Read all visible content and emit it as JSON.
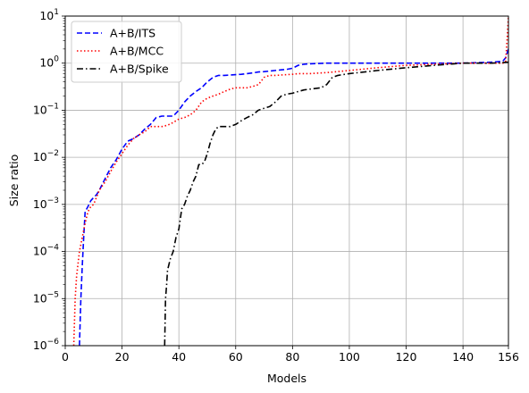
{
  "chart_data": {
    "type": "line",
    "title": "",
    "xlabel": "Models",
    "ylabel": "Size ratio",
    "xlim": [
      0,
      156
    ],
    "ylim": [
      1e-06,
      10
    ],
    "yscale": "log",
    "grid": true,
    "legend_position": "top-left",
    "x_ticks": [
      0,
      20,
      40,
      60,
      80,
      100,
      120,
      140,
      156
    ],
    "x_tick_labels": [
      "0",
      "20",
      "40",
      "60",
      "80",
      "100",
      "120",
      "140",
      "156"
    ],
    "y_ticks": [
      1e-06,
      1e-05,
      0.0001,
      0.001,
      0.01,
      0.1,
      1,
      10
    ],
    "y_tick_labels": [
      {
        "base": "10",
        "exp": "−6"
      },
      {
        "base": "10",
        "exp": "−5"
      },
      {
        "base": "10",
        "exp": "−4"
      },
      {
        "base": "10",
        "exp": "−3"
      },
      {
        "base": "10",
        "exp": "−2"
      },
      {
        "base": "10",
        "exp": "−1"
      },
      {
        "base": "10",
        "exp": "0"
      },
      {
        "base": "10",
        "exp": "1"
      }
    ],
    "series": [
      {
        "name": "A+B/ITS",
        "color": "#0000ff",
        "dash": "dashed",
        "x": [
          5,
          5.5,
          6,
          6.5,
          7,
          8,
          9,
          10,
          11,
          12,
          14,
          16,
          18,
          20,
          22,
          24,
          26,
          28,
          30,
          32,
          34,
          36,
          38,
          40,
          42,
          44,
          46,
          48,
          50,
          52,
          54,
          56,
          58,
          60,
          62,
          64,
          66,
          68,
          70,
          72,
          74,
          76,
          78,
          80,
          82,
          84,
          86,
          88,
          90,
          92,
          100,
          110,
          120,
          130,
          140,
          150,
          154,
          155,
          156
        ],
        "y": [
          1e-06,
          1e-05,
          5e-05,
          0.0002,
          0.0007,
          0.0009,
          0.0012,
          0.0014,
          0.0016,
          0.002,
          0.0035,
          0.006,
          0.009,
          0.015,
          0.022,
          0.025,
          0.03,
          0.04,
          0.05,
          0.07,
          0.075,
          0.075,
          0.075,
          0.1,
          0.15,
          0.2,
          0.25,
          0.3,
          0.4,
          0.5,
          0.55,
          0.55,
          0.56,
          0.57,
          0.58,
          0.6,
          0.62,
          0.65,
          0.66,
          0.68,
          0.7,
          0.72,
          0.74,
          0.78,
          0.9,
          0.95,
          0.97,
          0.98,
          0.99,
          1.0,
          1.0,
          1.0,
          1.0,
          1.0,
          1.0,
          1.05,
          1.1,
          1.3,
          2.0
        ]
      },
      {
        "name": "A+B/MCC",
        "color": "#ff0000",
        "dash": "dotted",
        "x": [
          3,
          3.5,
          4,
          5,
          6,
          7,
          8,
          9,
          10,
          12,
          14,
          16,
          18,
          20,
          22,
          24,
          26,
          28,
          30,
          32,
          34,
          36,
          38,
          40,
          42,
          44,
          46,
          48,
          50,
          52,
          54,
          56,
          58,
          60,
          62,
          64,
          66,
          68,
          70,
          72,
          74,
          76,
          78,
          80,
          82,
          84,
          86,
          88,
          90,
          92,
          100,
          110,
          120,
          130,
          140,
          150,
          154,
          155,
          155.5,
          156
        ],
        "y": [
          1e-06,
          1e-05,
          3e-05,
          0.0001,
          0.0002,
          0.0004,
          0.0007,
          0.0009,
          0.001,
          0.002,
          0.003,
          0.005,
          0.008,
          0.012,
          0.018,
          0.025,
          0.03,
          0.035,
          0.045,
          0.045,
          0.045,
          0.048,
          0.055,
          0.065,
          0.07,
          0.08,
          0.1,
          0.15,
          0.18,
          0.2,
          0.22,
          0.25,
          0.28,
          0.3,
          0.3,
          0.3,
          0.32,
          0.35,
          0.5,
          0.55,
          0.55,
          0.56,
          0.57,
          0.58,
          0.6,
          0.6,
          0.6,
          0.61,
          0.62,
          0.63,
          0.7,
          0.8,
          0.9,
          0.95,
          1.0,
          1.0,
          1.0,
          1.05,
          3.0,
          10
        ]
      },
      {
        "name": "A+B/Spike",
        "color": "#000000",
        "dash": "dashdot",
        "x": [
          35,
          35.3,
          35.7,
          36,
          37,
          38,
          39,
          40,
          41,
          42,
          43,
          44,
          45,
          46,
          47,
          48,
          49,
          50,
          51,
          52,
          53,
          54,
          56,
          58,
          60,
          62,
          64,
          66,
          68,
          70,
          72,
          74,
          76,
          78,
          80,
          82,
          84,
          86,
          88,
          90,
          92,
          94,
          96,
          100,
          110,
          120,
          130,
          140,
          150,
          156
        ],
        "y": [
          1e-06,
          1e-05,
          2e-05,
          4e-05,
          7e-05,
          0.0001,
          0.0002,
          0.0003,
          0.0008,
          0.001,
          0.0015,
          0.002,
          0.003,
          0.004,
          0.007,
          0.007,
          0.008,
          0.012,
          0.02,
          0.03,
          0.04,
          0.045,
          0.045,
          0.045,
          0.05,
          0.06,
          0.07,
          0.08,
          0.1,
          0.11,
          0.12,
          0.15,
          0.2,
          0.22,
          0.23,
          0.25,
          0.27,
          0.28,
          0.29,
          0.3,
          0.35,
          0.5,
          0.55,
          0.6,
          0.7,
          0.8,
          0.9,
          1.0,
          1.0,
          1.05
        ]
      }
    ]
  }
}
